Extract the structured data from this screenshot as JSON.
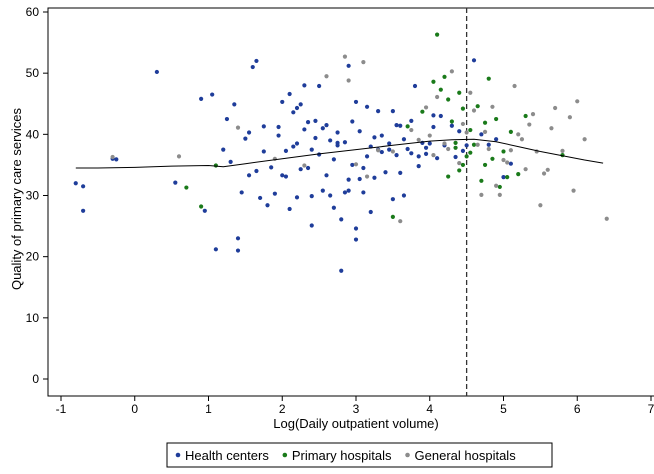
{
  "chart_data": {
    "type": "scatter",
    "xlabel": "Log(Daily outpatient volume)",
    "ylabel": "Quality of primary care services",
    "xlim": [
      -1,
      7
    ],
    "ylim": [
      0,
      60
    ],
    "xticks": [
      -1,
      0,
      1,
      2,
      3,
      4,
      5,
      6,
      7
    ],
    "yticks": [
      0,
      10,
      20,
      30,
      40,
      50,
      60
    ],
    "xtick_labels": [
      "-1",
      "0",
      "1",
      "2",
      "3",
      "4",
      "5",
      "6",
      "7"
    ],
    "ytick_labels": [
      "0",
      "10",
      "20",
      "30",
      "40",
      "50",
      "60"
    ],
    "grid": false,
    "legend_position": "bottom",
    "reference_line": {
      "x": 4.5,
      "style": "dashed"
    },
    "fit_line": {
      "x": [
        -0.8,
        -0.5,
        0,
        0.5,
        1.0,
        1.2,
        1.5,
        2.0,
        2.5,
        3.0,
        3.5,
        4.0,
        4.3,
        4.6,
        4.9,
        5.2,
        5.5,
        5.8,
        6.1,
        6.35
      ],
      "y": [
        34.5,
        34.5,
        34.6,
        34.8,
        34.9,
        34.7,
        35.2,
        36.0,
        36.8,
        37.5,
        38.2,
        38.9,
        39.1,
        39.2,
        38.8,
        38.0,
        37.2,
        36.5,
        35.8,
        35.3
      ]
    },
    "series": [
      {
        "name": "Health centers",
        "color": "#1f3d9a",
        "x": [
          -0.8,
          -0.7,
          -0.7,
          -0.3,
          -0.25,
          0.3,
          0.55,
          0.9,
          0.95,
          1.05,
          1.1,
          1.2,
          1.3,
          1.35,
          1.4,
          1.4,
          1.45,
          1.5,
          1.55,
          1.6,
          1.65,
          1.7,
          1.75,
          1.8,
          1.85,
          1.9,
          1.95,
          2.0,
          2.0,
          2.05,
          2.1,
          2.1,
          2.15,
          2.2,
          2.2,
          2.25,
          2.3,
          2.3,
          2.35,
          2.4,
          2.4,
          2.45,
          2.5,
          2.5,
          2.55,
          2.6,
          2.6,
          2.65,
          2.7,
          2.7,
          2.75,
          2.8,
          2.85,
          2.9,
          2.9,
          2.95,
          3.0,
          3.0,
          3.05,
          3.1,
          3.1,
          3.15,
          3.2,
          3.2,
          3.25,
          3.3,
          3.3,
          3.35,
          3.4,
          3.45,
          3.5,
          3.5,
          3.55,
          3.6,
          3.6,
          3.65,
          3.7,
          3.75,
          3.8,
          3.85,
          3.9,
          3.95,
          4.0,
          4.05,
          4.1,
          4.15,
          4.2,
          4.3,
          4.35,
          4.4,
          4.45,
          4.5,
          4.6,
          4.7,
          4.8,
          4.9,
          5.0,
          5.1,
          1.55,
          1.75,
          1.95,
          2.15,
          2.35,
          2.55,
          2.75,
          2.95,
          3.15,
          3.35,
          3.55,
          3.75,
          3.95,
          1.25,
          1.65,
          2.05,
          2.45,
          2.85,
          3.25,
          3.65,
          4.05,
          2.25,
          2.65,
          3.05,
          3.45,
          3.85,
          2.75,
          2.9,
          3.0,
          2.2,
          2.4,
          2.8
        ],
        "y": [
          32.0,
          31.5,
          27.5,
          36.0,
          35.9,
          50.2,
          32.1,
          45.8,
          27.5,
          46.5,
          21.2,
          37.5,
          35.5,
          44.9,
          21.0,
          23.0,
          30.5,
          39.3,
          33.3,
          51.0,
          52.0,
          29.6,
          41.3,
          28.4,
          34.6,
          30.3,
          41.2,
          45.3,
          33.3,
          37.3,
          27.8,
          46.6,
          38.0,
          38.5,
          29.7,
          44.9,
          40.8,
          48.0,
          42.0,
          37.5,
          25.1,
          39.4,
          36.7,
          47.9,
          30.8,
          41.5,
          33.3,
          39.0,
          35.9,
          28.0,
          40.3,
          17.7,
          38.7,
          51.2,
          32.6,
          35.0,
          45.3,
          22.8,
          40.5,
          30.5,
          34.5,
          44.5,
          27.3,
          38.0,
          32.9,
          37.5,
          43.8,
          37.1,
          33.8,
          38.5,
          43.8,
          29.4,
          36.6,
          41.4,
          33.7,
          39.2,
          37.6,
          42.2,
          47.9,
          34.8,
          38.6,
          36.8,
          38.5,
          41.2,
          36.1,
          43.0,
          38.2,
          41.4,
          36.3,
          40.5,
          37.3,
          38.2,
          52.1,
          40.0,
          38.3,
          39.2,
          33.0,
          35.2,
          40.3,
          37.2,
          39.8,
          43.6,
          34.5,
          41.0,
          38.6,
          42.1,
          36.4,
          39.8,
          41.5,
          36.9,
          37.8,
          42.5,
          34.0,
          33.1,
          42.2,
          30.5,
          39.5,
          30.0,
          43.1,
          34.3,
          30.0,
          32.7,
          37.5,
          36.4,
          38.2,
          30.8,
          24.6,
          44.3,
          29.9,
          26.1
        ]
      },
      {
        "name": "Primary hospitals",
        "color": "#1a7a1a",
        "x": [
          0.7,
          0.9,
          1.1,
          3.5,
          3.7,
          3.9,
          4.05,
          4.1,
          4.15,
          4.2,
          4.25,
          4.3,
          4.35,
          4.4,
          4.4,
          4.45,
          4.5,
          4.55,
          4.6,
          4.65,
          4.7,
          4.75,
          4.8,
          4.85,
          4.9,
          4.95,
          5.0,
          5.05,
          5.1,
          5.2,
          5.3,
          5.8,
          4.25,
          4.35,
          4.45,
          4.55,
          4.75
        ],
        "y": [
          31.3,
          28.2,
          34.9,
          26.5,
          41.3,
          43.7,
          48.6,
          56.3,
          47.3,
          49.4,
          45.7,
          42.1,
          38.6,
          34.1,
          46.8,
          44.2,
          36.4,
          40.7,
          38.3,
          44.6,
          32.4,
          35.0,
          49.1,
          36.0,
          42.5,
          31.4,
          37.2,
          33.0,
          40.4,
          33.5,
          43.0,
          36.6,
          33.1,
          37.8,
          35.0,
          37.0,
          41.9
        ]
      },
      {
        "name": "General hospitals",
        "color": "#8c8c8c",
        "x": [
          -0.3,
          0.6,
          1.4,
          1.9,
          2.3,
          2.6,
          2.85,
          3.0,
          3.15,
          3.3,
          3.5,
          3.6,
          3.75,
          3.85,
          3.95,
          4.0,
          4.1,
          4.2,
          4.3,
          4.4,
          4.45,
          4.5,
          4.6,
          4.7,
          4.8,
          4.85,
          4.9,
          5.0,
          5.1,
          5.15,
          5.2,
          5.3,
          5.4,
          5.45,
          5.5,
          5.6,
          5.7,
          5.8,
          5.9,
          5.95,
          6.0,
          6.1,
          6.4,
          4.55,
          4.65,
          4.75,
          4.95,
          5.05,
          5.25,
          5.35,
          5.55,
          5.65,
          2.9,
          3.1,
          4.05,
          4.25
        ],
        "y": [
          36.3,
          36.4,
          41.1,
          36.0,
          34.9,
          49.5,
          52.7,
          35.1,
          33.1,
          37.4,
          37.2,
          25.8,
          40.7,
          39.1,
          44.4,
          39.8,
          46.1,
          38.5,
          50.3,
          35.3,
          41.7,
          40.3,
          43.9,
          30.1,
          37.6,
          44.5,
          31.6,
          35.8,
          37.4,
          47.9,
          40.0,
          34.3,
          43.3,
          37.2,
          28.4,
          34.2,
          44.3,
          37.3,
          42.8,
          30.8,
          45.4,
          39.2,
          26.2,
          46.8,
          38.3,
          40.4,
          30.1,
          35.4,
          39.2,
          41.6,
          33.6,
          41.0,
          48.8,
          51.8,
          36.6,
          37.6
        ]
      }
    ]
  }
}
